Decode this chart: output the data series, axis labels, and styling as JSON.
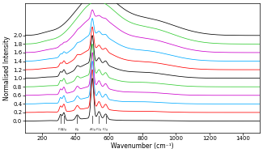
{
  "xlabel": "Wavenumber (cm⁻¹)",
  "ylabel": "Normalised Intensity",
  "xlim": [
    100,
    1500
  ],
  "ylim": [
    -0.28,
    2.75
  ],
  "yticks": [
    0.0,
    0.2,
    0.4,
    0.6,
    0.8,
    1.0,
    1.2,
    1.4,
    1.6,
    1.8,
    2.0
  ],
  "xticks": [
    200,
    400,
    600,
    800,
    1000,
    1200,
    1400
  ],
  "mode_positions": [
    310,
    330,
    410,
    500,
    540,
    580
  ],
  "colors": [
    "#000000",
    "#ff0000",
    "#00aaff",
    "#cc00cc",
    "#33cc33",
    "#000000",
    "#ff0000",
    "#00aaff",
    "#cc00cc",
    "#33cc33",
    "#000000"
  ],
  "offsets": [
    0.0,
    0.2,
    0.4,
    0.6,
    0.8,
    1.0,
    1.2,
    1.4,
    1.6,
    1.8,
    2.0
  ],
  "background_color": "#ffffff"
}
